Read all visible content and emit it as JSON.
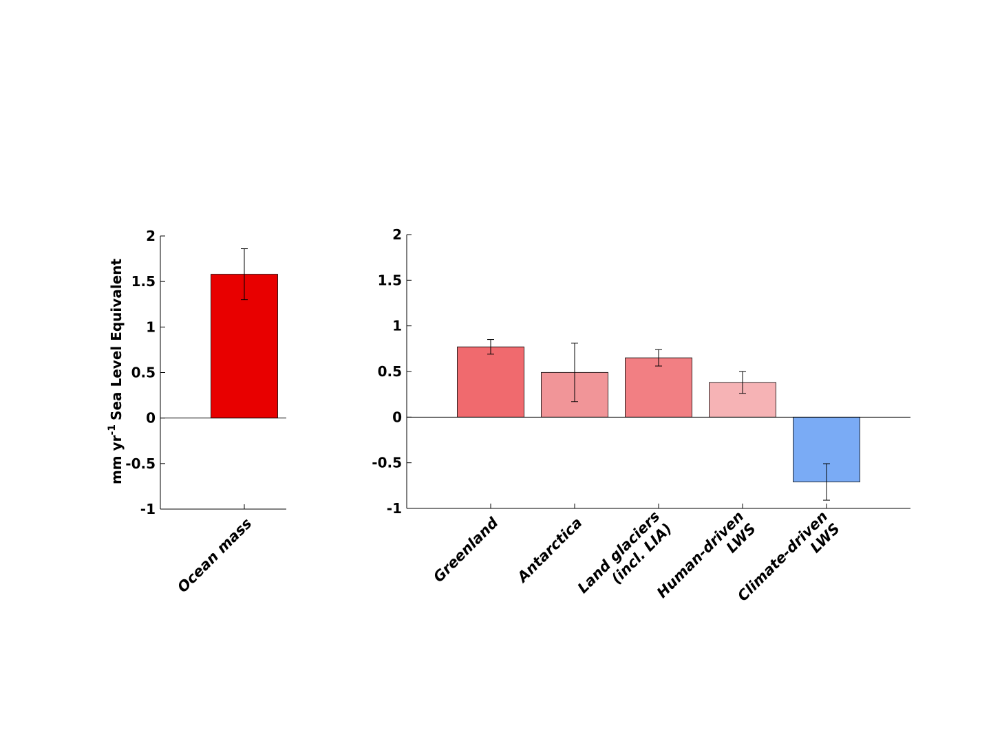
{
  "chart_data": [
    {
      "type": "bar",
      "ylabel": {
        "text": "mm yr",
        "superscript": "-1",
        "rest": "Sea Level Equivalent"
      },
      "categories": [
        [
          "Ocean mass"
        ]
      ],
      "values": [
        1.58
      ],
      "errors": [
        0.28
      ],
      "colors": [
        "#e80000"
      ],
      "ylim": [
        -1,
        2
      ],
      "yticks": [
        2,
        1.5,
        1,
        0.5,
        0,
        -0.5,
        -1
      ]
    },
    {
      "type": "bar",
      "categories": [
        [
          "Greenland"
        ],
        [
          "Antarctica"
        ],
        [
          "Land glaciers",
          "(incl. LIA)"
        ],
        [
          "Human-driven",
          "LWS"
        ],
        [
          "Climate-driven",
          "LWS"
        ]
      ],
      "values": [
        0.77,
        0.49,
        0.65,
        0.38,
        -0.71
      ],
      "errors": [
        0.08,
        0.32,
        0.09,
        0.12,
        0.2
      ],
      "colors": [
        "#f06a6e",
        "#f19598",
        "#f27f83",
        "#f6b3b5",
        "#7aabf5"
      ],
      "ylim": [
        -1,
        2
      ],
      "yticks": [
        2,
        1.5,
        1,
        0.5,
        0,
        -0.5,
        -1
      ]
    }
  ]
}
